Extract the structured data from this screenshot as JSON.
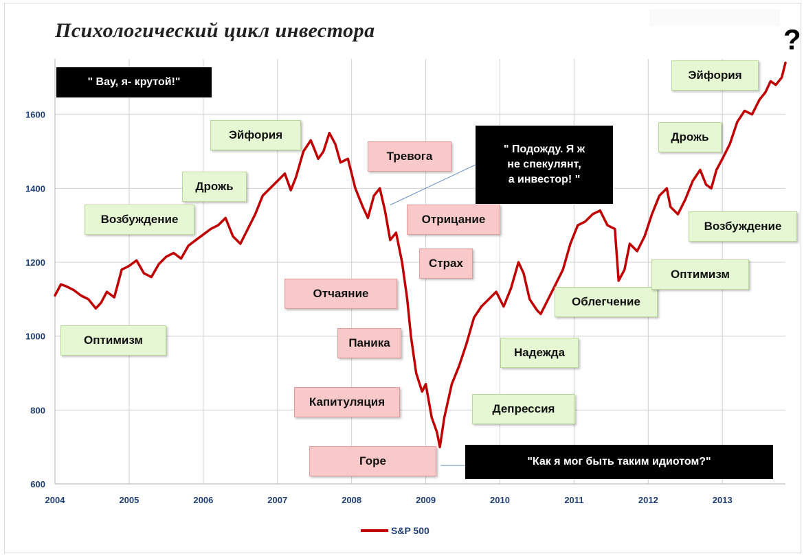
{
  "title": "Психологический цикл инвестора",
  "question_mark": "?",
  "chart_data": {
    "type": "line",
    "title": "Психологический цикл инвестора",
    "xlabel": "",
    "ylabel": "",
    "xlim": [
      2004.0,
      2013.85
    ],
    "ylim": [
      600,
      1750
    ],
    "x_ticks": [
      "2004",
      "2005",
      "2006",
      "2007",
      "2008",
      "2009",
      "2010",
      "2011",
      "2012",
      "2013"
    ],
    "y_ticks": [
      "600",
      "800",
      "1000",
      "1200",
      "1400",
      "1600"
    ],
    "grid": "vertical lines at years, horizontal lines at y ticks",
    "legend": "bottom-center",
    "series": [
      {
        "name": "S&P 500",
        "color": "#c00000",
        "x": [
          2004.0,
          2004.08,
          2004.15,
          2004.25,
          2004.35,
          2004.45,
          2004.55,
          2004.62,
          2004.7,
          2004.8,
          2004.9,
          2005.0,
          2005.1,
          2005.2,
          2005.3,
          2005.4,
          2005.5,
          2005.6,
          2005.7,
          2005.8,
          2005.9,
          2006.0,
          2006.1,
          2006.2,
          2006.3,
          2006.4,
          2006.5,
          2006.6,
          2006.7,
          2006.8,
          2006.9,
          2007.0,
          2007.1,
          2007.18,
          2007.25,
          2007.35,
          2007.45,
          2007.55,
          2007.62,
          2007.7,
          2007.78,
          2007.85,
          2007.95,
          2008.05,
          2008.15,
          2008.22,
          2008.3,
          2008.38,
          2008.45,
          2008.52,
          2008.6,
          2008.68,
          2008.75,
          2008.8,
          2008.87,
          2008.95,
          2009.0,
          2009.08,
          2009.15,
          2009.19,
          2009.25,
          2009.35,
          2009.45,
          2009.55,
          2009.65,
          2009.75,
          2009.85,
          2009.95,
          2010.05,
          2010.15,
          2010.25,
          2010.32,
          2010.4,
          2010.5,
          2010.55,
          2010.65,
          2010.75,
          2010.85,
          2010.95,
          2011.05,
          2011.15,
          2011.25,
          2011.35,
          2011.45,
          2011.55,
          2011.6,
          2011.68,
          2011.75,
          2011.85,
          2011.95,
          2012.05,
          2012.15,
          2012.25,
          2012.3,
          2012.4,
          2012.5,
          2012.6,
          2012.7,
          2012.78,
          2012.85,
          2012.92,
          2013.0,
          2013.1,
          2013.2,
          2013.3,
          2013.4,
          2013.5,
          2013.58,
          2013.65,
          2013.72,
          2013.8,
          2013.85
        ],
        "y": [
          1110,
          1140,
          1135,
          1125,
          1110,
          1100,
          1075,
          1090,
          1120,
          1105,
          1180,
          1190,
          1205,
          1170,
          1160,
          1195,
          1215,
          1225,
          1210,
          1245,
          1260,
          1275,
          1290,
          1300,
          1320,
          1270,
          1250,
          1290,
          1330,
          1380,
          1400,
          1420,
          1440,
          1395,
          1430,
          1500,
          1530,
          1480,
          1500,
          1550,
          1520,
          1470,
          1480,
          1400,
          1350,
          1320,
          1380,
          1400,
          1340,
          1260,
          1280,
          1200,
          1100,
          1000,
          900,
          850,
          870,
          780,
          740,
          700,
          780,
          870,
          920,
          980,
          1050,
          1080,
          1100,
          1120,
          1080,
          1130,
          1200,
          1170,
          1100,
          1070,
          1060,
          1100,
          1140,
          1180,
          1250,
          1300,
          1310,
          1330,
          1340,
          1300,
          1290,
          1150,
          1180,
          1250,
          1230,
          1270,
          1330,
          1380,
          1400,
          1350,
          1330,
          1370,
          1420,
          1450,
          1410,
          1400,
          1450,
          1480,
          1520,
          1580,
          1610,
          1600,
          1640,
          1660,
          1690,
          1680,
          1700,
          1740
        ]
      }
    ]
  },
  "phase_labels": [
    {
      "text": "Оптимизм",
      "style": "green"
    },
    {
      "text": "Возбуждение",
      "style": "green"
    },
    {
      "text": "Дрожь",
      "style": "green"
    },
    {
      "text": "Эйфория",
      "style": "green"
    },
    {
      "text": "Тревога",
      "style": "pink"
    },
    {
      "text": "Отрицание",
      "style": "pink"
    },
    {
      "text": "Страх",
      "style": "pink"
    },
    {
      "text": "Отчаяние",
      "style": "pink"
    },
    {
      "text": "Паника",
      "style": "pink"
    },
    {
      "text": "Капитуляция",
      "style": "pink"
    },
    {
      "text": "Горе",
      "style": "pink"
    },
    {
      "text": "Депрессия",
      "style": "green"
    },
    {
      "text": "Надежда",
      "style": "green"
    },
    {
      "text": "Облегчение",
      "style": "green"
    },
    {
      "text": "Оптимизм",
      "style": "green"
    },
    {
      "text": "Возбуждение",
      "style": "green"
    },
    {
      "text": "Дрожь",
      "style": "green"
    },
    {
      "text": "Эйфория",
      "style": "green"
    }
  ],
  "quotes": [
    {
      "text": "\" Вау, я- крутой!\""
    },
    {
      "text": "\" Подожду. Я ж\nне спекулянт,\nа инвестор! \""
    },
    {
      "text": "\"Как я мог быть таким идиотом?\""
    }
  ],
  "legend": {
    "label": "S&P 500",
    "color": "#c00000"
  }
}
